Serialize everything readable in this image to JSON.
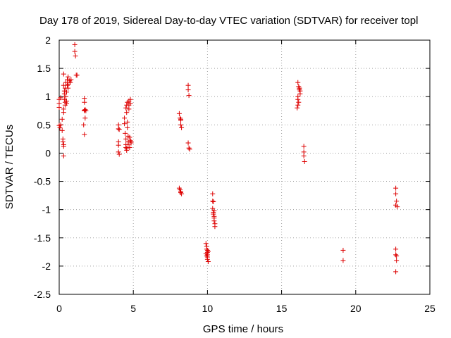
{
  "chart_data": {
    "type": "scatter",
    "title": "Day 178 of 2019, Sidereal Day-to-day VTEC variation (SDTVAR) for receiver topl",
    "xlabel": "GPS time / hours",
    "ylabel": "SDTVAR / TECUs",
    "xlim": [
      0,
      25
    ],
    "ylim": [
      -2.5,
      2
    ],
    "xticks": [
      0,
      5,
      10,
      15,
      20,
      25
    ],
    "xtick_labels": [
      "0",
      "5",
      "10",
      "15",
      "20",
      "25"
    ],
    "yticks": [
      2,
      1.5,
      1,
      0.5,
      0,
      -0.5,
      -1,
      -1.5,
      -2,
      -2.5
    ],
    "ytick_labels": [
      "2",
      "1.5",
      "1",
      "0.5",
      "0",
      "-0.5",
      "-1",
      "-1.5",
      "-2",
      "-2.5"
    ],
    "grid": true,
    "marker": "+",
    "series": [
      {
        "name": "SDTVAR",
        "color": "#dd0000",
        "points": [
          [
            0.0,
            0.95
          ],
          [
            0.0,
            0.88
          ],
          [
            0.0,
            0.81
          ],
          [
            0.0,
            0.49
          ],
          [
            0.05,
            0.45
          ],
          [
            0.1,
            0.5
          ],
          [
            0.1,
            0.98
          ],
          [
            0.2,
            0.6
          ],
          [
            0.2,
            0.4
          ],
          [
            0.25,
            0.25
          ],
          [
            0.25,
            0.2
          ],
          [
            0.3,
            0.15
          ],
          [
            0.3,
            0.12
          ],
          [
            0.3,
            -0.05
          ],
          [
            0.3,
            1.4
          ],
          [
            0.3,
            1.2
          ],
          [
            0.35,
            1.1
          ],
          [
            0.35,
            1.05
          ],
          [
            0.35,
            0.95
          ],
          [
            0.4,
            0.9
          ],
          [
            0.4,
            0.85
          ],
          [
            0.3,
            0.72
          ],
          [
            0.3,
            0.78
          ],
          [
            0.4,
            1.15
          ],
          [
            0.45,
            1.25
          ],
          [
            0.45,
            1.0
          ],
          [
            0.5,
            1.08
          ],
          [
            0.5,
            0.92
          ],
          [
            0.5,
            0.88
          ],
          [
            0.55,
            1.2
          ],
          [
            0.55,
            1.3
          ],
          [
            0.6,
            1.22
          ],
          [
            0.6,
            1.35
          ],
          [
            0.6,
            1.15
          ],
          [
            0.7,
            1.28
          ],
          [
            0.75,
            1.25
          ],
          [
            0.8,
            1.3
          ],
          [
            1.05,
            1.92
          ],
          [
            1.05,
            1.8
          ],
          [
            1.1,
            1.72
          ],
          [
            1.15,
            1.38
          ],
          [
            1.2,
            1.38
          ],
          [
            1.7,
            0.97
          ],
          [
            1.7,
            0.9
          ],
          [
            1.7,
            0.76
          ],
          [
            1.7,
            0.75
          ],
          [
            1.75,
            0.77
          ],
          [
            1.8,
            0.75
          ],
          [
            1.65,
            0.5
          ],
          [
            1.75,
            0.62
          ],
          [
            1.7,
            0.33
          ],
          [
            4.0,
            0.5
          ],
          [
            4.0,
            0.43
          ],
          [
            4.05,
            0.42
          ],
          [
            4.0,
            0.2
          ],
          [
            4.0,
            0.14
          ],
          [
            4.0,
            0.02
          ],
          [
            4.05,
            -0.02
          ],
          [
            4.4,
            0.62
          ],
          [
            4.4,
            0.52
          ],
          [
            4.45,
            0.35
          ],
          [
            4.5,
            0.25
          ],
          [
            4.5,
            0.15
          ],
          [
            4.5,
            0.1
          ],
          [
            4.55,
            0.05
          ],
          [
            4.5,
            0.8
          ],
          [
            4.55,
            0.85
          ],
          [
            4.55,
            0.72
          ],
          [
            4.6,
            0.9
          ],
          [
            4.6,
            0.55
          ],
          [
            4.6,
            0.45
          ],
          [
            4.65,
            0.3
          ],
          [
            4.65,
            0.2
          ],
          [
            4.65,
            0.15
          ],
          [
            4.7,
            0.92
          ],
          [
            4.7,
            0.85
          ],
          [
            4.7,
            0.78
          ],
          [
            4.75,
            0.28
          ],
          [
            4.75,
            0.1
          ],
          [
            4.8,
            0.95
          ],
          [
            4.8,
            0.88
          ],
          [
            4.8,
            0.22
          ],
          [
            4.85,
            0.2
          ],
          [
            4.85,
            0.18
          ],
          [
            4.55,
            0.08
          ],
          [
            8.1,
            0.7
          ],
          [
            8.15,
            0.62
          ],
          [
            8.2,
            0.6
          ],
          [
            8.2,
            0.58
          ],
          [
            8.2,
            0.5
          ],
          [
            8.25,
            0.45
          ],
          [
            8.1,
            -0.62
          ],
          [
            8.15,
            -0.65
          ],
          [
            8.2,
            -0.68
          ],
          [
            8.2,
            -0.7
          ],
          [
            8.25,
            -0.72
          ],
          [
            8.7,
            1.2
          ],
          [
            8.7,
            1.12
          ],
          [
            8.75,
            1.02
          ],
          [
            8.7,
            0.18
          ],
          [
            8.75,
            0.09
          ],
          [
            8.8,
            0.07
          ],
          [
            9.9,
            -1.6
          ],
          [
            9.95,
            -1.65
          ],
          [
            9.95,
            -1.7
          ],
          [
            10.0,
            -1.72
          ],
          [
            10.0,
            -1.76
          ],
          [
            10.0,
            -1.8
          ],
          [
            10.0,
            -1.84
          ],
          [
            10.0,
            -1.88
          ],
          [
            10.05,
            -1.92
          ],
          [
            9.9,
            -1.78
          ],
          [
            9.95,
            -1.82
          ],
          [
            10.05,
            -1.74
          ],
          [
            10.35,
            -0.72
          ],
          [
            10.35,
            -0.85
          ],
          [
            10.4,
            -0.86
          ],
          [
            10.35,
            -0.98
          ],
          [
            10.4,
            -1.05
          ],
          [
            10.4,
            -1.08
          ],
          [
            10.45,
            -1.12
          ],
          [
            10.45,
            -1.15
          ],
          [
            10.45,
            -1.2
          ],
          [
            10.5,
            -1.25
          ],
          [
            10.5,
            -1.3
          ],
          [
            10.45,
            -1.02
          ],
          [
            16.1,
            1.25
          ],
          [
            16.15,
            1.18
          ],
          [
            16.2,
            1.15
          ],
          [
            16.2,
            1.12
          ],
          [
            16.25,
            1.1
          ],
          [
            16.25,
            1.05
          ],
          [
            16.1,
            1.0
          ],
          [
            16.1,
            0.95
          ],
          [
            16.15,
            0.9
          ],
          [
            16.1,
            0.85
          ],
          [
            16.05,
            0.8
          ],
          [
            16.2,
            1.15
          ],
          [
            16.5,
            0.12
          ],
          [
            16.5,
            0.02
          ],
          [
            16.5,
            -0.05
          ],
          [
            16.55,
            -0.15
          ],
          [
            19.15,
            -1.72
          ],
          [
            19.15,
            -1.9
          ],
          [
            22.7,
            -0.62
          ],
          [
            22.7,
            -0.72
          ],
          [
            22.75,
            -0.85
          ],
          [
            22.7,
            -0.92
          ],
          [
            22.8,
            -0.95
          ],
          [
            22.7,
            -1.7
          ],
          [
            22.7,
            -1.8
          ],
          [
            22.75,
            -1.82
          ],
          [
            22.75,
            -1.9
          ],
          [
            22.7,
            -2.1
          ]
        ]
      }
    ]
  }
}
